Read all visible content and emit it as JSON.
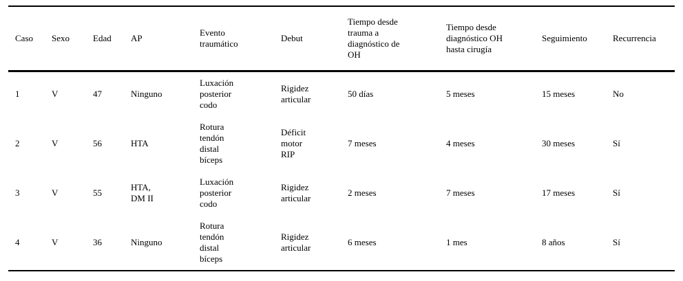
{
  "table": {
    "headers": {
      "caso": "Caso",
      "sexo": "Sexo",
      "edad": "Edad",
      "ap": "AP",
      "evento": "Evento\ntraumático",
      "debut": "Debut",
      "tiempo_trauma_diagnostico": "Tiempo desde\ntrauma a\ndiagnóstico de\nOH",
      "tiempo_diagnostico_cirugia": "Tiempo desde\ndiagnóstico OH\nhasta cirugía",
      "seguimiento": "Seguimiento",
      "recurrencia": "Recurrencia"
    },
    "rows": [
      [
        "1",
        "V",
        "47",
        "Ninguno",
        "Luxación\nposterior\ncodo",
        "Rigidez\narticular",
        "50 días",
        "5 meses",
        "15 meses",
        "No"
      ],
      [
        "2",
        "V",
        "56",
        "HTA",
        "Rotura\ntendón\ndistal\nbíceps",
        "Déficit\nmotor\nRIP",
        "7 meses",
        "4 meses",
        "30 meses",
        "Sí"
      ],
      [
        "3",
        "V",
        "55",
        "HTA,\nDM II",
        "Luxación\nposterior\ncodo",
        "Rigidez\narticular",
        "2 meses",
        "7 meses",
        "17 meses",
        "Sí"
      ],
      [
        "4",
        "V",
        "36",
        "Ninguno",
        "Rotura\ntendón\ndistal\nbíceps",
        "Rigidez\narticular",
        "6 meses",
        "1 mes",
        "8 años",
        "Sí"
      ]
    ]
  }
}
